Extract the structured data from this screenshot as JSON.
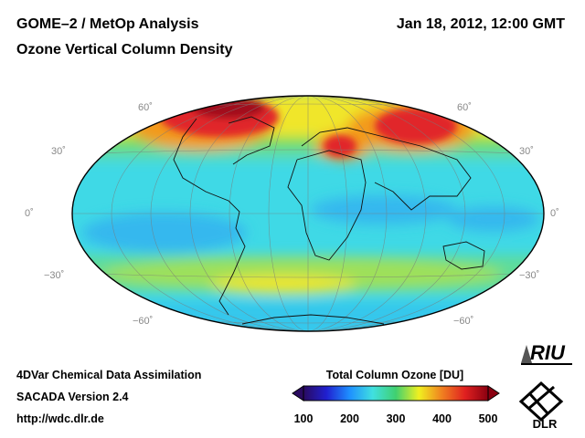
{
  "header": {
    "title": "GOME–2 / MetOp Analysis",
    "subtitle": "Ozone Vertical Column Density",
    "datetime": "Jan 18, 2012, 12:00 GMT"
  },
  "map": {
    "projection": "hammer-aitoff",
    "lat_labels": [
      "60˚",
      "30˚",
      "0˚",
      "−30˚",
      "−60˚"
    ],
    "colors": {
      "low": "#2ea9ef",
      "mid": "#3fd9e6",
      "green": "#6fdc5a",
      "yellow": "#f0e62a",
      "orange": "#f39a1f",
      "red": "#e1262a",
      "darkred": "#a10c1a"
    }
  },
  "colorbar": {
    "title": "Total Column Ozone [DU]",
    "ticks": [
      "100",
      "200",
      "300",
      "400",
      "500"
    ],
    "colors": [
      "#2a0a60",
      "#2020d0",
      "#1e90ff",
      "#40e0e0",
      "#40d070",
      "#f0f020",
      "#f08020",
      "#e02020",
      "#8a0010"
    ]
  },
  "footer": {
    "line1": "4DVar Chemical Data Assimilation",
    "line2": "SACADA Version 2.4",
    "line3": "http://wdc.dlr.de"
  },
  "logos": {
    "riu": "RIU",
    "dlr": "DLR"
  }
}
